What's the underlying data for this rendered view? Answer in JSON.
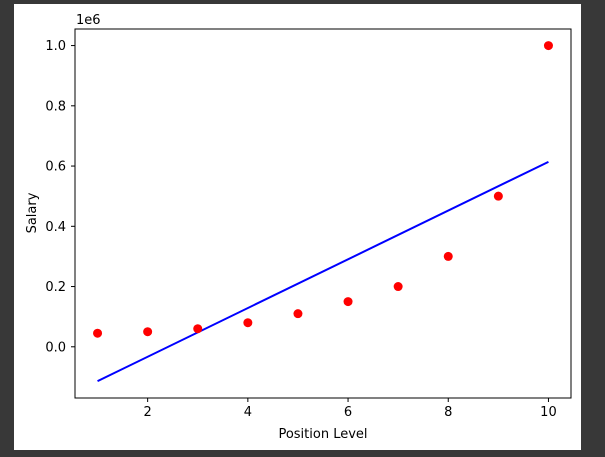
{
  "chart_data": {
    "type": "scatter",
    "title": "",
    "xlabel": "Position Level",
    "ylabel": "Salary",
    "y_offset_label": "1e6",
    "xlim": [
      0.55,
      10.45
    ],
    "ylim": [
      -0.17,
      1.055
    ],
    "xticks": [
      2,
      4,
      6,
      8,
      10
    ],
    "xtick_labels": [
      "2",
      "4",
      "6",
      "8",
      "10"
    ],
    "yticks": [
      0.0,
      0.2,
      0.4,
      0.6,
      0.8,
      1.0
    ],
    "ytick_labels": [
      "0.0",
      "0.2",
      "0.4",
      "0.6",
      "0.8",
      "1.0"
    ],
    "grid": false,
    "series": [
      {
        "kind": "scatter",
        "color": "#ff0000",
        "x": [
          1,
          2,
          3,
          4,
          5,
          6,
          7,
          8,
          9,
          10
        ],
        "y": [
          0.045,
          0.05,
          0.06,
          0.08,
          0.11,
          0.15,
          0.2,
          0.3,
          0.5,
          1.0
        ]
      },
      {
        "kind": "line",
        "color": "#0000ff",
        "x": [
          1,
          10
        ],
        "y": [
          -0.114,
          0.614
        ]
      }
    ]
  }
}
